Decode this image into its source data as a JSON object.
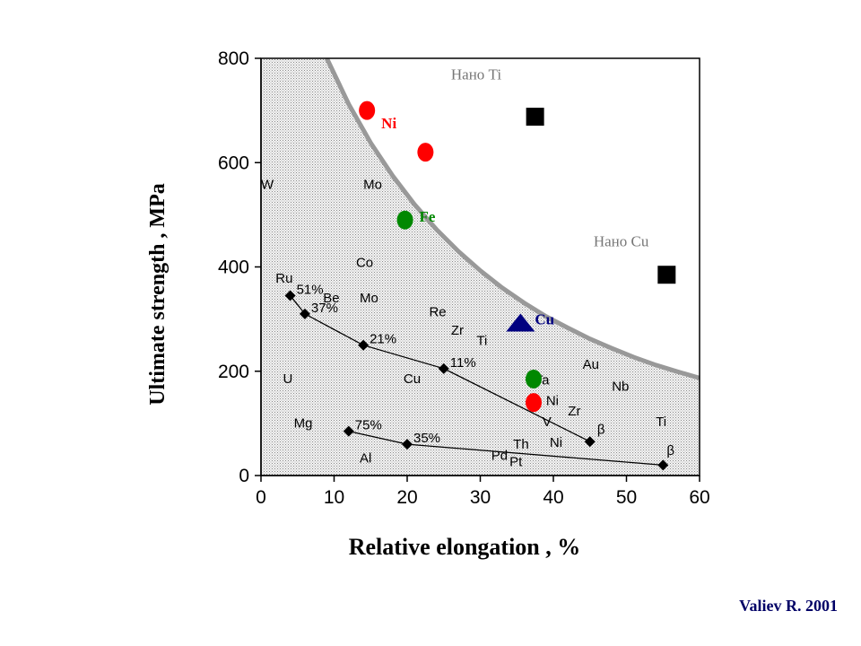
{
  "credit": "Valiev R. 2001",
  "chart_data": {
    "type": "scatter",
    "title": "",
    "xlabel": "Relative elongation , %",
    "ylabel": "Ultimate strength , MPa",
    "xlim": [
      0,
      60
    ],
    "ylim": [
      0,
      800
    ],
    "x_ticks": [
      0,
      10,
      20,
      30,
      40,
      50,
      60
    ],
    "y_ticks": [
      0,
      200,
      400,
      600,
      800
    ],
    "grid": false,
    "boundary_curve": [
      [
        9,
        800
      ],
      [
        12,
        712
      ],
      [
        15,
        638
      ],
      [
        18,
        575
      ],
      [
        21,
        520
      ],
      [
        24,
        472
      ],
      [
        27,
        430
      ],
      [
        30,
        393
      ],
      [
        33,
        360
      ],
      [
        36,
        331
      ],
      [
        39,
        305
      ],
      [
        42,
        283
      ],
      [
        45,
        262
      ],
      [
        48,
        244
      ],
      [
        51,
        227
      ],
      [
        54,
        212
      ],
      [
        57,
        199
      ],
      [
        60,
        187
      ]
    ],
    "element_labels": [
      {
        "text": "W",
        "x": 0,
        "y": 550
      },
      {
        "text": "Mo",
        "x": 14,
        "y": 550
      },
      {
        "text": "Co",
        "x": 13,
        "y": 400
      },
      {
        "text": "Ru",
        "x": 2,
        "y": 370
      },
      {
        "text": "Be",
        "x": 8.5,
        "y": 332
      },
      {
        "text": "Mo",
        "x": 13.5,
        "y": 332
      },
      {
        "text": "Re",
        "x": 23,
        "y": 305
      },
      {
        "text": "Zr",
        "x": 26,
        "y": 270
      },
      {
        "text": "Ti",
        "x": 29.5,
        "y": 250
      },
      {
        "text": "Au",
        "x": 44,
        "y": 205
      },
      {
        "text": "Ta",
        "x": 37.5,
        "y": 175
      },
      {
        "text": "Nb",
        "x": 48,
        "y": 163
      },
      {
        "text": "U",
        "x": 3,
        "y": 177
      },
      {
        "text": "Cu",
        "x": 19.5,
        "y": 177
      },
      {
        "text": "Ni",
        "x": 39,
        "y": 135
      },
      {
        "text": "Zr",
        "x": 42,
        "y": 115
      },
      {
        "text": "Ti",
        "x": 54,
        "y": 95
      },
      {
        "text": "V",
        "x": 38.5,
        "y": 95
      },
      {
        "text": "Mg",
        "x": 4.5,
        "y": 92
      },
      {
        "text": "Al",
        "x": 13.5,
        "y": 25
      },
      {
        "text": "Ni",
        "x": 39.5,
        "y": 55
      },
      {
        "text": "Th",
        "x": 34.5,
        "y": 52
      },
      {
        "text": "Pd",
        "x": 31.5,
        "y": 30
      },
      {
        "text": "Pt",
        "x": 34,
        "y": 18
      },
      {
        "text": "β",
        "x": 46,
        "y": 80
      },
      {
        "text": "β",
        "x": 55.5,
        "y": 40
      }
    ],
    "series": [
      {
        "x": [
          4,
          6,
          14,
          25,
          45
        ],
        "y": [
          345,
          310,
          250,
          205,
          65
        ],
        "labels": [
          "51%",
          "37%",
          "21%",
          "11%",
          ""
        ]
      },
      {
        "x": [
          12,
          20,
          55
        ],
        "y": [
          85,
          60,
          20
        ],
        "labels": [
          "75%",
          "35%",
          ""
        ]
      }
    ],
    "highlight_points": [
      {
        "label": "Ni",
        "marker": "circle",
        "color": "#ff0000",
        "x": 14.5,
        "y": 700
      },
      {
        "label": "",
        "marker": "circle",
        "color": "#ff0000",
        "x": 22.5,
        "y": 620
      },
      {
        "label": "Fe",
        "marker": "circle",
        "color": "#008800",
        "x": 19.7,
        "y": 490
      },
      {
        "label": "",
        "marker": "circle",
        "color": "#008800",
        "x": 37.3,
        "y": 185
      },
      {
        "label": "",
        "marker": "circle",
        "color": "#ff0000",
        "x": 37.3,
        "y": 140
      },
      {
        "label": "Cu",
        "marker": "triangle",
        "color": "#000080",
        "x": 35.5,
        "y": 290
      },
      {
        "label": "",
        "marker": "square",
        "color": "#000000",
        "x": 37.5,
        "y": 688
      },
      {
        "label": "",
        "marker": "square",
        "color": "#000000",
        "x": 55.5,
        "y": 385
      }
    ],
    "annotations": [
      {
        "text": "Нано Ti",
        "x": 26,
        "y": 760
      },
      {
        "text": "Нано Cu",
        "x": 45.5,
        "y": 440
      }
    ]
  }
}
